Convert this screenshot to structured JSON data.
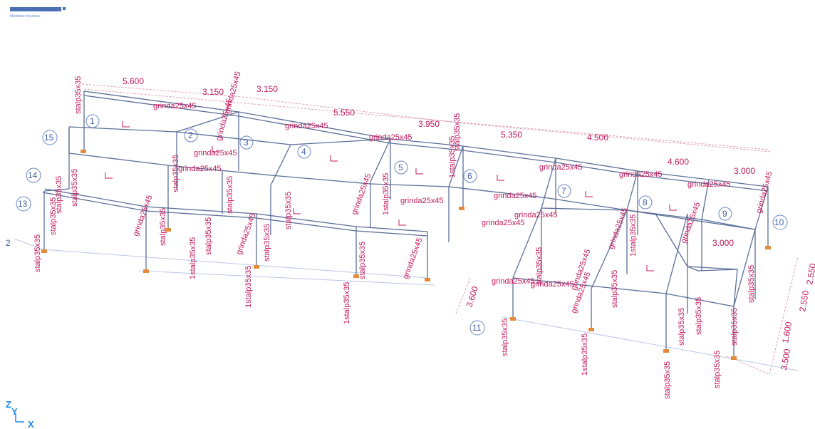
{
  "header": {
    "sub": "Modelare structura"
  },
  "axes": {
    "z": "Z",
    "y": "Y",
    "x": "X"
  },
  "nodes": [
    {
      "n": "1"
    },
    {
      "n": "2"
    },
    {
      "n": "3"
    },
    {
      "n": "4"
    },
    {
      "n": "5"
    },
    {
      "n": "6"
    },
    {
      "n": "7"
    },
    {
      "n": "8"
    },
    {
      "n": "9"
    },
    {
      "n": "10"
    },
    {
      "n": "11"
    },
    {
      "n": "13"
    },
    {
      "n": "14"
    },
    {
      "n": "15"
    },
    {
      "n": "2"
    }
  ],
  "dimensions": [
    {
      "t": "5.600"
    },
    {
      "t": "3.150"
    },
    {
      "t": "3.150"
    },
    {
      "t": "5.550"
    },
    {
      "t": "3.950"
    },
    {
      "t": "5.350"
    },
    {
      "t": "4.500"
    },
    {
      "t": "4.600"
    },
    {
      "t": "3.000"
    },
    {
      "t": "3.000"
    },
    {
      "t": "3.600"
    },
    {
      "t": "2.550"
    },
    {
      "t": "3.500"
    },
    {
      "t": "1.600"
    },
    {
      "t": "2.550"
    }
  ],
  "members": [
    {
      "t": "stalp35x35"
    },
    {
      "t": "grinda25x45"
    },
    {
      "t": "grinda25x45"
    },
    {
      "t": "grinda25x45"
    },
    {
      "t": "grinda25x45"
    },
    {
      "t": "grinda25x45"
    },
    {
      "t": "stalp35x35"
    },
    {
      "t": "grinda25x45"
    },
    {
      "t": "grinda25x45"
    },
    {
      "t": "grinda25x45"
    },
    {
      "t": "1stalp35x35"
    },
    {
      "t": "stalp35x35"
    },
    {
      "t": "stalp35x35"
    },
    {
      "t": "stalp35x35"
    },
    {
      "t": "stalp35x35"
    },
    {
      "t": "grinda25x45"
    },
    {
      "t": "grinda25x45"
    },
    {
      "t": "stalp35x35"
    },
    {
      "t": "stalp35x35"
    },
    {
      "t": "1stalp35x35"
    },
    {
      "t": "grinda25x45"
    },
    {
      "t": "stalp35x35"
    },
    {
      "t": "1stalp35x35"
    },
    {
      "t": "stalp35x35"
    },
    {
      "t": "grinda25x45"
    },
    {
      "t": "stalp35x35"
    },
    {
      "t": "grinda25x45"
    },
    {
      "t": "1stalp35x35"
    },
    {
      "t": "stalp35x35"
    },
    {
      "t": "1stalp35x35"
    },
    {
      "t": "grinda25x45"
    },
    {
      "t": "grinda25x45"
    },
    {
      "t": "grinda25x45"
    },
    {
      "t": "grinda25x45"
    },
    {
      "t": "stalp35x35"
    },
    {
      "t": "grinda25x45"
    },
    {
      "t": "grinda25x45"
    },
    {
      "t": "grinda25x45"
    },
    {
      "t": "1stalp35x35"
    },
    {
      "t": "grinda25x45"
    },
    {
      "t": "grinda25x45"
    },
    {
      "t": "grinda25x45"
    },
    {
      "t": "stalp35x35"
    },
    {
      "t": "stalp35x35"
    },
    {
      "t": "1stalp35x35"
    },
    {
      "t": "grinda25x45"
    },
    {
      "t": "stalp35x35"
    },
    {
      "t": "stalp35x35"
    },
    {
      "t": "stalp35x35"
    },
    {
      "t": "stalp35x35"
    },
    {
      "t": "stalp35x35"
    },
    {
      "t": "stalp35x35"
    },
    {
      "t": "stalp35x35"
    },
    {
      "t": "grinda25x45"
    }
  ]
}
